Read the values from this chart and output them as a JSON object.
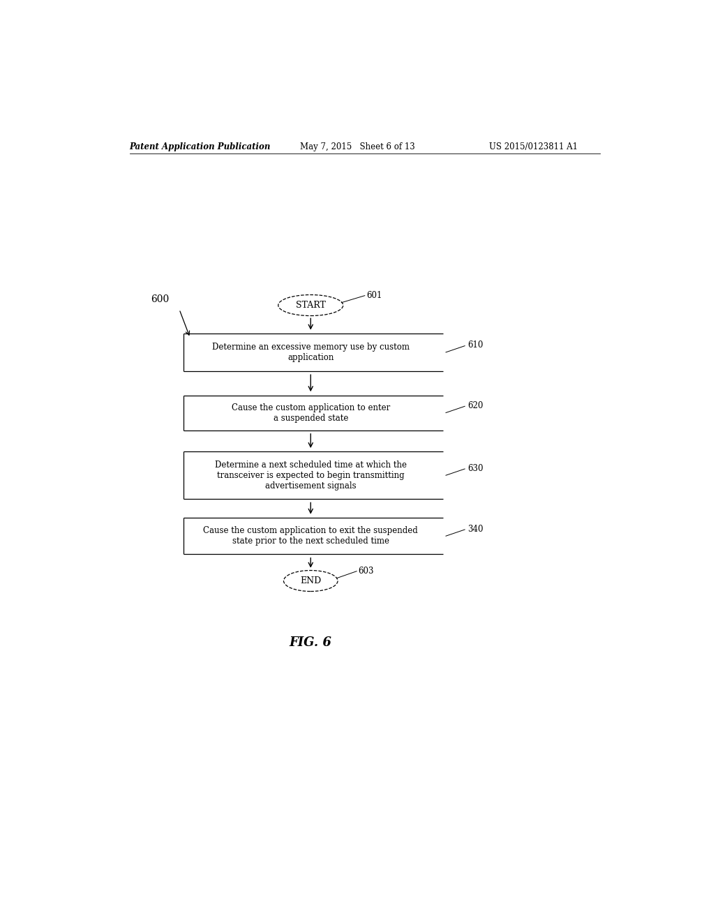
{
  "header_left": "Patent Application Publication",
  "header_mid": "May 7, 2015   Sheet 6 of 13",
  "header_right": "US 2015/0123811 A1",
  "figure_label": "FIG. 6",
  "diagram_label": "600",
  "start_label": "601",
  "end_label": "603",
  "start_text": "START",
  "end_text": "END",
  "boxes": [
    {
      "id": "610",
      "text": "Determine an excessive memory use by custom\napplication"
    },
    {
      "id": "620",
      "text": "Cause the custom application to enter\na suspended state"
    },
    {
      "id": "630",
      "text": "Determine a next scheduled time at which the\ntransceiver is expected to begin transmitting\nadvertisement signals"
    },
    {
      "id": "340",
      "text": "Cause the custom application to exit the suspended\nstate prior to the next scheduled time"
    }
  ],
  "bg_color": "#ffffff",
  "box_edge_color": "#000000",
  "text_color": "#000000",
  "font_size_header": 8.5,
  "font_size_box": 8.5,
  "font_size_label": 8.5,
  "font_size_fig": 13
}
